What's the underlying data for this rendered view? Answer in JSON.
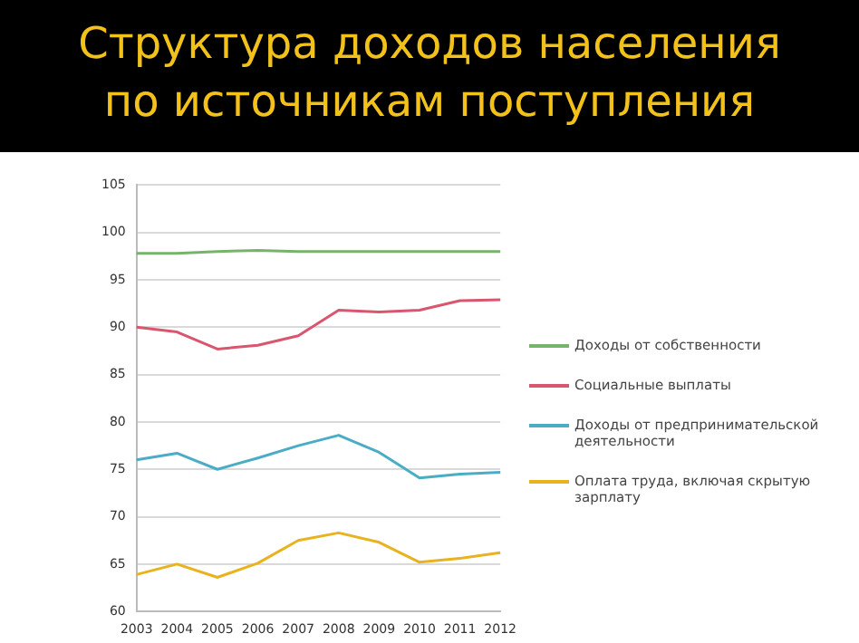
{
  "chart_data": {
    "type": "line",
    "title": "Структура  доходов  населения по  источникам  поступления",
    "categories": [
      "2003",
      "2004",
      "2005",
      "2006",
      "2007",
      "2008",
      "2009",
      "2010",
      "2011",
      "2012"
    ],
    "series": [
      {
        "name": "Доходы от собственности",
        "color": "#77b36b",
        "values": [
          97.8,
          97.8,
          98,
          98.1,
          98,
          98,
          98,
          98,
          98,
          98
        ]
      },
      {
        "name": "Социальные выплаты",
        "color": "#d9566f",
        "values": [
          90,
          89.5,
          87.7,
          88.1,
          89.1,
          91.8,
          91.6,
          91.8,
          92.8,
          92.9
        ]
      },
      {
        "name": "Доходы от предпринимательской деятельности",
        "color": "#4bacc6",
        "values": [
          76,
          76.7,
          75,
          76.2,
          77.5,
          78.6,
          76.8,
          74.1,
          74.5,
          74.7
        ]
      },
      {
        "name": "Оплата труда, включая скрытую зарплату",
        "color": "#e8b31e",
        "values": [
          63.9,
          65,
          63.6,
          65.1,
          67.5,
          68.3,
          67.3,
          65.2,
          65.6,
          66.2
        ]
      }
    ],
    "ylim": [
      60,
      105
    ],
    "yticks": [
      60,
      65,
      70,
      75,
      80,
      85,
      90,
      95,
      100,
      105
    ],
    "grid": "y",
    "legend": "right",
    "marker": "none",
    "line_style": "solid"
  }
}
